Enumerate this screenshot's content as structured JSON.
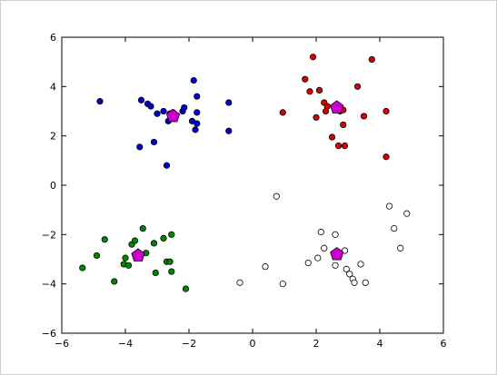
{
  "chart_data": {
    "type": "scatter",
    "title": "",
    "xlabel": "",
    "ylabel": "",
    "xlim": [
      -6,
      6
    ],
    "ylim": [
      -6,
      6
    ],
    "xticks": [
      -6,
      -4,
      -2,
      0,
      2,
      4,
      6
    ],
    "yticks": [
      -6,
      -4,
      -2,
      0,
      2,
      4,
      6
    ],
    "grid": false,
    "series": [
      {
        "color": "#0000cc",
        "marker": "circle",
        "points": [
          [
            -4.8,
            3.4
          ],
          [
            -3.5,
            3.45
          ],
          [
            -3.3,
            3.3
          ],
          [
            -3.2,
            3.2
          ],
          [
            -3.0,
            2.9
          ],
          [
            -2.8,
            3.0
          ],
          [
            -2.6,
            2.9
          ],
          [
            -2.5,
            2.95
          ],
          [
            -2.2,
            3.0
          ],
          [
            -2.15,
            3.15
          ],
          [
            -1.9,
            2.6
          ],
          [
            -1.85,
            4.25
          ],
          [
            -1.75,
            3.6
          ],
          [
            -1.75,
            2.95
          ],
          [
            -1.8,
            2.25
          ],
          [
            -1.75,
            2.5
          ],
          [
            -0.75,
            3.35
          ],
          [
            -0.75,
            2.2
          ],
          [
            -2.65,
            2.6
          ],
          [
            -3.1,
            1.75
          ],
          [
            -3.55,
            1.55
          ],
          [
            -2.7,
            0.8
          ]
        ]
      },
      {
        "color": "#dd0000",
        "marker": "circle",
        "points": [
          [
            1.9,
            5.2
          ],
          [
            3.75,
            5.1
          ],
          [
            1.65,
            4.3
          ],
          [
            3.3,
            4.0
          ],
          [
            1.8,
            3.8
          ],
          [
            2.1,
            3.85
          ],
          [
            2.25,
            3.35
          ],
          [
            2.35,
            3.2
          ],
          [
            2.3,
            3.0
          ],
          [
            2.75,
            3.0
          ],
          [
            2.85,
            3.05
          ],
          [
            2.0,
            2.75
          ],
          [
            3.5,
            2.8
          ],
          [
            0.95,
            2.95
          ],
          [
            4.2,
            3.0
          ],
          [
            2.85,
            2.45
          ],
          [
            2.5,
            1.95
          ],
          [
            2.7,
            1.6
          ],
          [
            2.9,
            1.6
          ],
          [
            4.2,
            1.15
          ]
        ]
      },
      {
        "color": "#008800",
        "marker": "circle",
        "points": [
          [
            -5.35,
            -3.35
          ],
          [
            -4.9,
            -2.85
          ],
          [
            -4.65,
            -2.2
          ],
          [
            -4.35,
            -3.9
          ],
          [
            -4.05,
            -3.2
          ],
          [
            -4.0,
            -2.95
          ],
          [
            -3.9,
            -3.25
          ],
          [
            -3.8,
            -2.4
          ],
          [
            -3.7,
            -2.25
          ],
          [
            -3.45,
            -1.75
          ],
          [
            -3.35,
            -2.75
          ],
          [
            -3.1,
            -2.35
          ],
          [
            -3.05,
            -3.55
          ],
          [
            -2.8,
            -2.15
          ],
          [
            -2.7,
            -3.1
          ],
          [
            -2.6,
            -3.1
          ],
          [
            -2.55,
            -2.0
          ],
          [
            -2.55,
            -3.5
          ],
          [
            -2.1,
            -4.2
          ]
        ]
      },
      {
        "color": "#ffffff",
        "marker": "circle",
        "points": [
          [
            0.75,
            -0.45
          ],
          [
            0.4,
            -3.3
          ],
          [
            -0.4,
            -3.95
          ],
          [
            0.95,
            -4.0
          ],
          [
            1.75,
            -3.15
          ],
          [
            2.05,
            -2.95
          ],
          [
            2.15,
            -1.9
          ],
          [
            2.25,
            -2.55
          ],
          [
            2.6,
            -2.0
          ],
          [
            2.6,
            -3.25
          ],
          [
            2.65,
            -2.85
          ],
          [
            2.9,
            -2.65
          ],
          [
            2.95,
            -3.4
          ],
          [
            3.05,
            -3.6
          ],
          [
            3.15,
            -3.8
          ],
          [
            3.2,
            -3.95
          ],
          [
            3.4,
            -3.2
          ],
          [
            3.55,
            -3.95
          ],
          [
            4.3,
            -0.85
          ],
          [
            4.45,
            -1.75
          ],
          [
            4.65,
            -2.55
          ],
          [
            4.85,
            -1.15
          ]
        ]
      }
    ],
    "centroids": {
      "color": "#cc00cc",
      "marker": "pentagon",
      "points": [
        [
          -2.5,
          2.8
        ],
        [
          2.65,
          3.15
        ],
        [
          -3.6,
          -2.85
        ],
        [
          2.65,
          -2.8
        ]
      ]
    }
  }
}
